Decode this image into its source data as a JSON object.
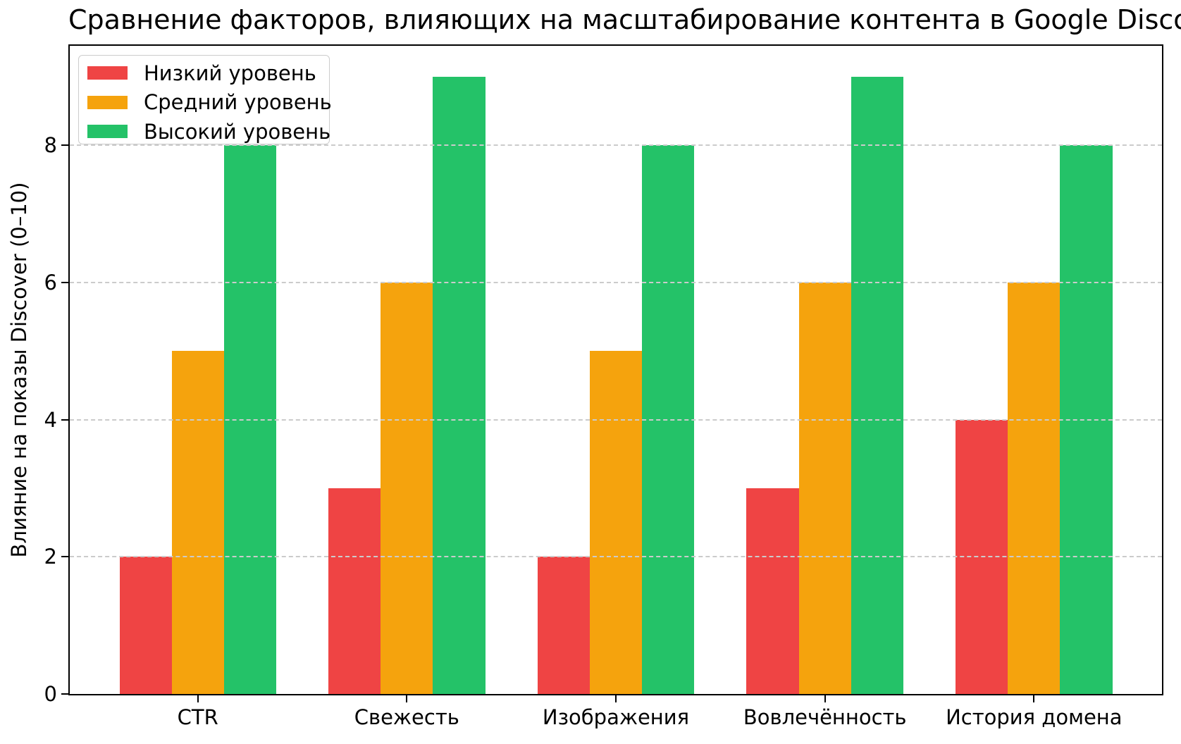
{
  "chart_data": {
    "type": "bar",
    "title": "Сравнение факторов, влияющих на масштабирование контента в Google Discover",
    "xlabel": "",
    "ylabel": "Влияние на показы Discover (0–10)",
    "categories": [
      "CTR",
      "Свежесть",
      "Изображения",
      "Вовлечённость",
      "История домена"
    ],
    "series": [
      {
        "name": "Низкий уровень",
        "color": "#ef4444",
        "values": [
          2,
          3,
          2,
          3,
          4
        ]
      },
      {
        "name": "Средний уровень",
        "color": "#f5a30d",
        "values": [
          5,
          6,
          5,
          6,
          6
        ]
      },
      {
        "name": "Высокий уровень",
        "color": "#24c268",
        "values": [
          8,
          9,
          8,
          9,
          8
        ]
      }
    ],
    "ylim": [
      0,
      9.45
    ],
    "yticks": [
      0,
      2,
      4,
      6,
      8
    ],
    "grid": "horizontal-dashed",
    "grid_color": "#cbcbcb",
    "legend_position": "upper left",
    "spine_color": "#000000",
    "background_color": "#ffffff"
  }
}
